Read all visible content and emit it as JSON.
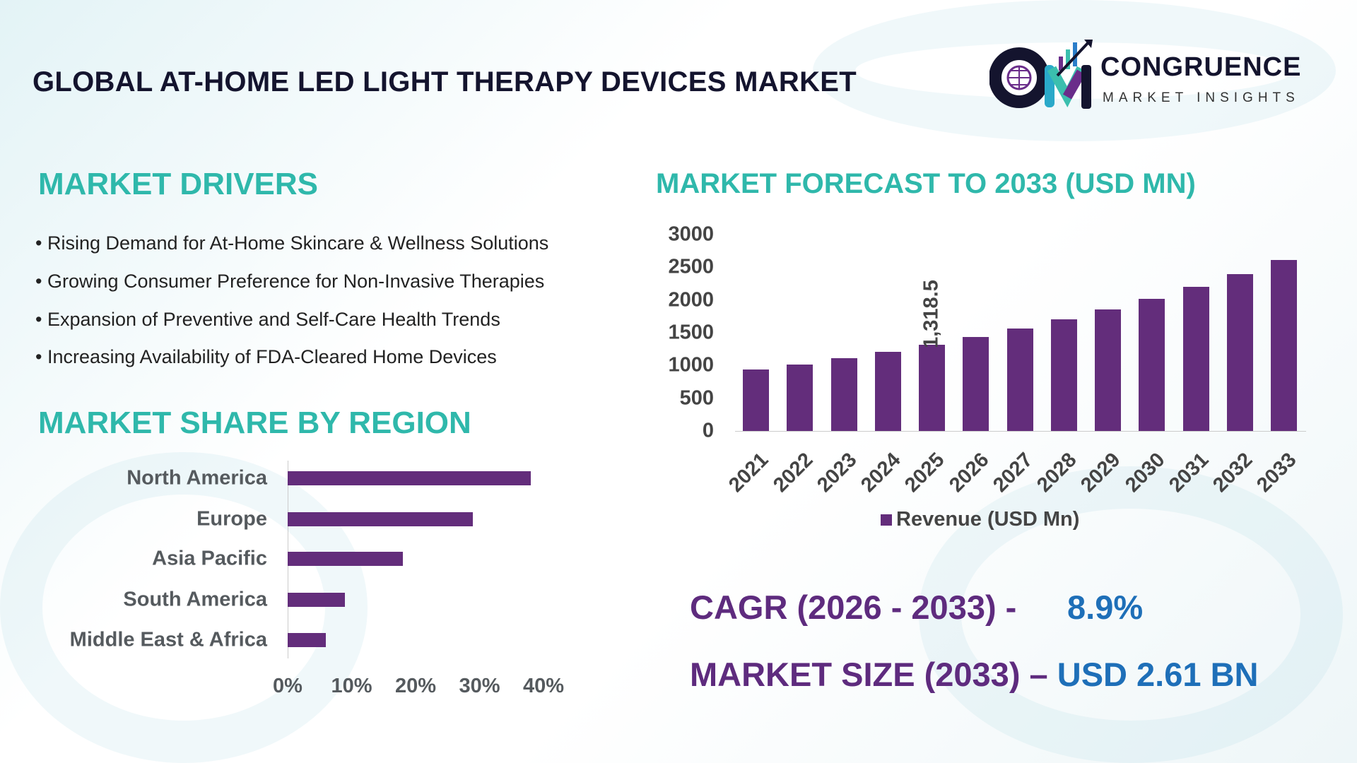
{
  "header": {
    "title": "GLOBAL AT-HOME LED LIGHT THERAPY DEVICES MARKET"
  },
  "logo": {
    "name": "CONGRUENCE",
    "tagline": "MARKET INSIGHTS",
    "text": "CM"
  },
  "drivers": {
    "heading": "MARKET DRIVERS",
    "items": [
      "Rising Demand for At-Home Skincare & Wellness Solutions",
      "Growing Consumer Preference for Non-Invasive Therapies",
      "Expansion of Preventive and Self-Care Health Trends",
      "Increasing Availability of FDA-Cleared Home Devices"
    ]
  },
  "colors": {
    "teal": "#2fb8ab",
    "purple": "#5e2b7e",
    "bar": "#632d7b",
    "blue": "#1e6fb8",
    "dark": "#14142e"
  },
  "chart_data": [
    {
      "type": "bar",
      "orientation": "horizontal",
      "title": "MARKET SHARE BY REGION",
      "categories": [
        "North America",
        "Europe",
        "Asia Pacific",
        "South America",
        "Middle East & Africa"
      ],
      "values": [
        38,
        29,
        18,
        9,
        6
      ],
      "unit": "%",
      "xticks": [
        "0%",
        "10%",
        "20%",
        "30%",
        "40%"
      ],
      "xlim": [
        0,
        40
      ],
      "grid": false
    },
    {
      "type": "bar",
      "title": "MARKET FORECAST TO 2033 (USD MN)",
      "categories": [
        "2021",
        "2022",
        "2023",
        "2024",
        "2025",
        "2026",
        "2027",
        "2028",
        "2029",
        "2030",
        "2031",
        "2032",
        "2033"
      ],
      "series": [
        {
          "name": "Revenue (USD Mn)",
          "values": [
            936,
            1019,
            1110,
            1209,
            1318.5,
            1436,
            1564,
            1703,
            1855,
            2020,
            2200,
            2396,
            2610
          ]
        }
      ],
      "data_labels": {
        "2025": "1,318.5"
      },
      "yticks": [
        "0",
        "500",
        "1000",
        "1500",
        "2000",
        "2500",
        "3000"
      ],
      "ylim": [
        0,
        3000
      ],
      "grid": false,
      "legend": "bottom"
    }
  ],
  "stats": {
    "cagr_label": "CAGR (2026 - 2033) -",
    "cagr_value": "8.9%",
    "size_label": "MARKET SIZE (2033) –",
    "size_value": "USD 2.61 BN"
  }
}
